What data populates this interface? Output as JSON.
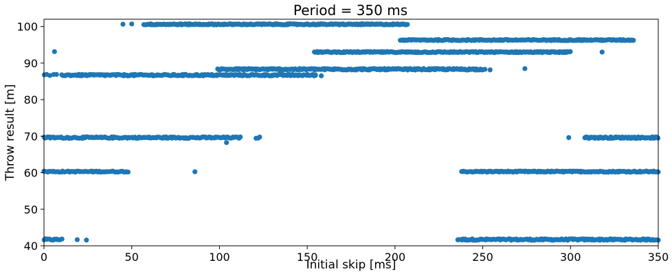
{
  "chart_data": {
    "type": "scatter",
    "title": "Period = 350 ms",
    "xlabel": "Initial skip [ms]",
    "ylabel": "Throw result [m]",
    "xlim": [
      0,
      350
    ],
    "ylim": [
      40,
      102
    ],
    "xticks": [
      0,
      50,
      100,
      150,
      200,
      250,
      300,
      350
    ],
    "yticks": [
      40,
      50,
      60,
      70,
      80,
      90,
      100
    ],
    "grid": false,
    "marker_color": "#1f77b4",
    "bands": [
      {
        "y": 41.7,
        "jitter": 0.2,
        "ranges": [
          [
            0,
            10,
            14
          ],
          [
            19,
            24,
            2
          ],
          [
            236,
            350,
            170
          ]
        ]
      },
      {
        "y": 60.3,
        "jitter": 0.15,
        "ranges": [
          [
            0,
            48,
            60
          ],
          [
            86,
            86,
            1
          ],
          [
            238,
            350,
            170
          ]
        ]
      },
      {
        "y": 69.6,
        "jitter": 0.2,
        "ranges": [
          [
            0,
            112,
            150
          ],
          [
            121,
            123,
            3
          ],
          [
            299,
            299,
            1
          ],
          [
            308,
            350,
            80
          ]
        ]
      },
      {
        "y": 68.2,
        "jitter": 0.05,
        "ranges": [
          [
            104,
            104,
            1
          ]
        ]
      },
      {
        "y": 86.7,
        "jitter": 0.2,
        "ranges": [
          [
            0,
            7,
            5
          ],
          [
            10,
            155,
            220
          ],
          [
            158,
            159,
            1
          ]
        ]
      },
      {
        "y": 88.3,
        "jitter": 0.2,
        "ranges": [
          [
            99,
            250,
            260
          ],
          [
            251,
            254,
            2
          ],
          [
            274,
            274,
            1
          ]
        ]
      },
      {
        "y": 93.0,
        "jitter": 0.15,
        "ranges": [
          [
            6,
            6,
            1
          ],
          [
            154,
            300,
            240
          ],
          [
            318,
            318,
            1
          ]
        ]
      },
      {
        "y": 96.3,
        "jitter": 0.15,
        "ranges": [
          [
            203,
            336,
            200
          ]
        ]
      },
      {
        "y": 100.6,
        "jitter": 0.15,
        "ranges": [
          [
            45,
            45,
            1
          ],
          [
            50,
            50,
            1
          ],
          [
            57,
            207,
            260
          ]
        ]
      }
    ]
  }
}
